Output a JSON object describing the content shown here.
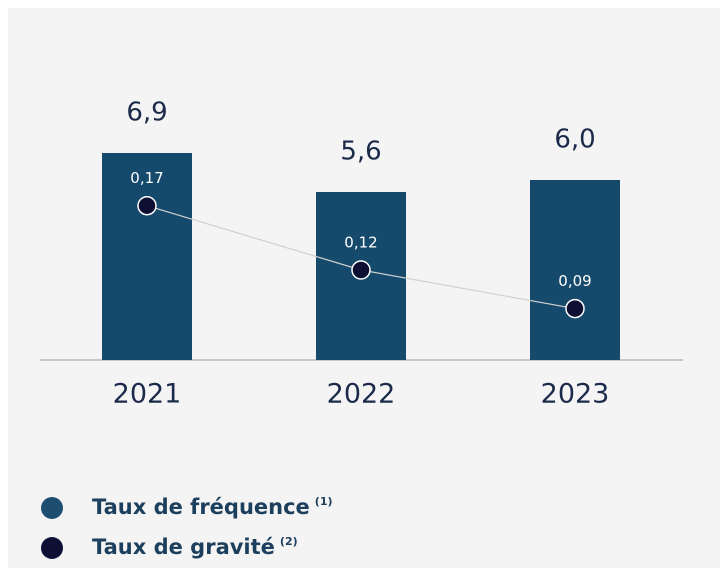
{
  "chart_data": {
    "type": "bar",
    "categories": [
      "2021",
      "2022",
      "2023"
    ],
    "series": [
      {
        "name": "Taux de fréquence",
        "note": "(1)",
        "color": "#164a6c",
        "values": [
          6.9,
          5.6,
          6.0
        ],
        "value_labels": [
          "6,9",
          "5,6",
          "6,0"
        ]
      },
      {
        "name": "Taux de gravité",
        "note": "(2)",
        "color": "#0d0f33",
        "type": "line",
        "axis": "y2",
        "values": [
          0.17,
          0.12,
          0.09
        ],
        "value_labels": [
          "0,17",
          "0,12",
          "0,09"
        ]
      }
    ],
    "ylim": [
      0,
      12
    ],
    "y2lim": [
      0.05,
      0.33
    ]
  }
}
